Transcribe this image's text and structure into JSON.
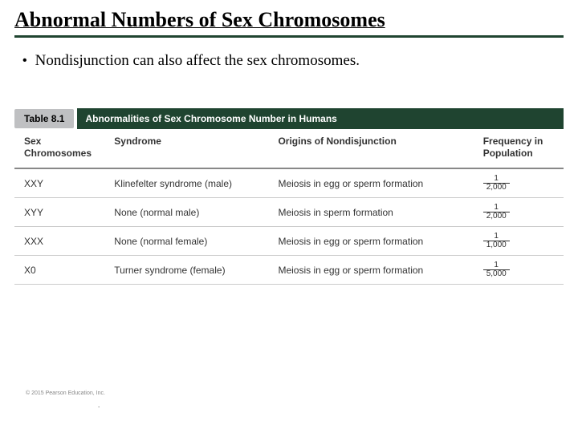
{
  "title": "Abnormal Numbers of Sex Chromosomes",
  "bullet": "Nondisjunction can also affect the sex chromosomes.",
  "table": {
    "tab": "Table 8.1",
    "caption": "Abnormalities of Sex Chromosome Number in Humans",
    "columns": {
      "chromosomes": "Sex Chromosomes",
      "syndrome": "Syndrome",
      "origins": "Origins of Nondisjunction",
      "frequency": "Frequency in Population"
    },
    "rows": [
      {
        "chrom": "XXY",
        "synd": "Klinefelter syndrome (male)",
        "orig": "Meiosis in egg or sperm formation",
        "freq_num": "1",
        "freq_den": "2,000"
      },
      {
        "chrom": "XYY",
        "synd": "None (normal male)",
        "orig": "Meiosis in sperm formation",
        "freq_num": "1",
        "freq_den": "2,000"
      },
      {
        "chrom": "XXX",
        "synd": "None (normal female)",
        "orig": "Meiosis in egg or sperm formation",
        "freq_num": "1",
        "freq_den": "1,000"
      },
      {
        "chrom": "X0",
        "synd": "Turner syndrome (female)",
        "orig": "Meiosis in egg or sperm formation",
        "freq_num": "1",
        "freq_den": "5,000"
      }
    ]
  },
  "copyright": "© 2015 Pearson Education, Inc.",
  "colors": {
    "header_green": "#1f4430",
    "tab_gray": "#bfc0c2",
    "row_border": "#cccccc",
    "head_border": "#888888"
  }
}
